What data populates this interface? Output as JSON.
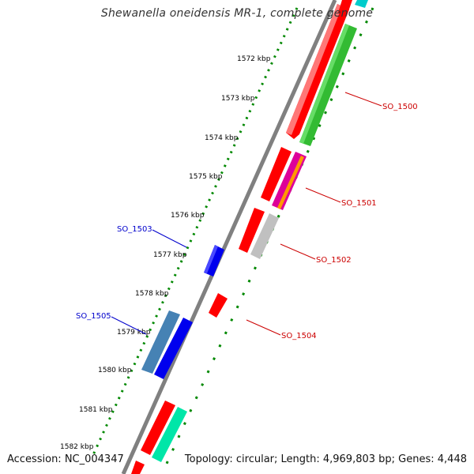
{
  "title": "Shewanella oneidensis MR-1, complete genome",
  "footer": {
    "accession": "Accession: NC_004347",
    "topology": "Topology: circular; Length: 4,969,803 bp; Genes: 4,448"
  },
  "ruler": {
    "ticks": [
      "1572 kbp",
      "1573 kbp",
      "1574 kbp",
      "1575 kbp",
      "1576 kbp",
      "1577 kbp",
      "1578 kbp",
      "1579 kbp",
      "1580 kbp",
      "1581 kbp",
      "1582 kbp"
    ]
  },
  "gene_labels": [
    {
      "text": "SO_1500",
      "color": "#cc0000"
    },
    {
      "text": "SO_1501",
      "color": "#cc0000"
    },
    {
      "text": "SO_1502",
      "color": "#cc0000"
    },
    {
      "text": "SO_1504",
      "color": "#cc0000"
    },
    {
      "text": "SO_1503",
      "color": "#0000cc"
    },
    {
      "text": "SO_1505",
      "color": "#0000cc"
    }
  ],
  "colors": {
    "red": "#ff0000",
    "green": "#33bb33",
    "blue": "#0000ee",
    "steelblue": "#4682b4",
    "gray": "#c0c0c0",
    "magenta": "#dd0099",
    "orange": "#ff9900",
    "teal": "#00e6a8",
    "cyan": "#00cccc",
    "backbone": "#808080",
    "dotted": "#008800"
  }
}
